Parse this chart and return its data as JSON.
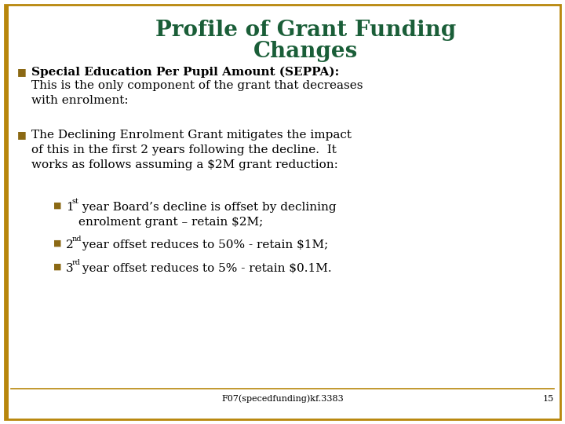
{
  "title_line1": "Profile of Grant Funding",
  "title_line2": "Changes",
  "title_color": "#1a5e38",
  "background_color": "#ffffff",
  "border_color": "#b8860b",
  "footer_text": "F07(specedfunding)kf.3383",
  "page_number": "15",
  "bullet_color": "#8b6914",
  "bullet1_bold": "Special Education Per Pupil Amount (SEPPA):",
  "bullet1_text": "This is the only component of the grant that decreases\nwith enrolment:",
  "bullet2_text": "The Declining Enrolment Grant mitigates the impact\nof this in the first 2 years following the decline.  It\nworks as follows assuming a $2M grant reduction:",
  "sub_bullet1_num": "1",
  "sub_bullet1_super": "st",
  "sub_bullet1_text": " year Board’s decline is offset by declining\nenrolment grant – retain $2M;",
  "sub_bullet2_num": "2",
  "sub_bullet2_super": "nd",
  "sub_bullet2_text": " year offset reduces to 50% - retain $1M;",
  "sub_bullet3_num": "3",
  "sub_bullet3_super": "rd",
  "sub_bullet3_text": " year offset reduces to 5% - retain $0.1M.",
  "font_family": "DejaVu Serif",
  "title_fontsize": 20,
  "body_fontsize": 11,
  "sub_bullet_fontsize": 11,
  "footer_fontsize": 8
}
